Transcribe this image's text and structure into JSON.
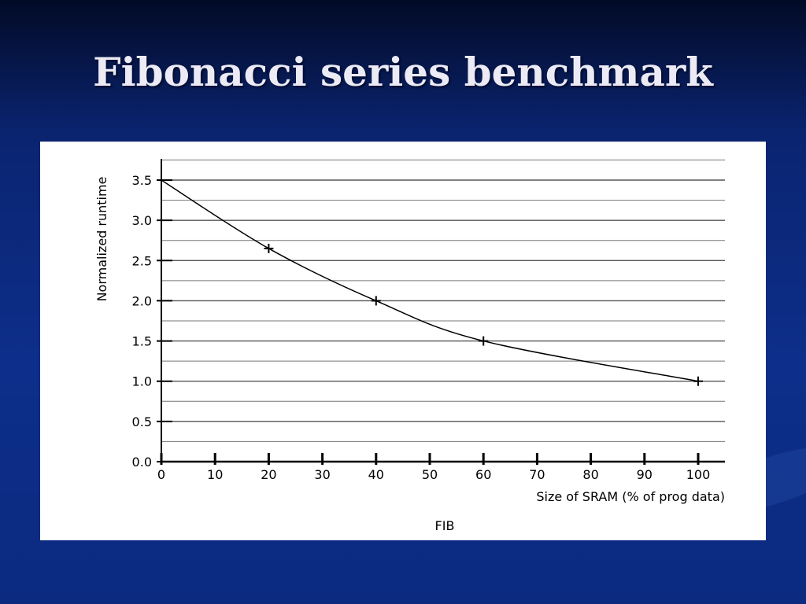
{
  "slide": {
    "title": "Fibonacci series benchmark",
    "background_color": "#0b2a80"
  },
  "chart_data": {
    "type": "line",
    "title": "",
    "caption": "FIB",
    "xlabel": "Size of SRAM (% of prog data)",
    "ylabel": "Normalized runtime",
    "xlim": [
      0,
      100
    ],
    "ylim": [
      0,
      3.75
    ],
    "x_ticks": [
      0,
      10,
      20,
      30,
      40,
      50,
      60,
      70,
      80,
      90,
      100
    ],
    "y_ticks": [
      0.0,
      0.5,
      1.0,
      1.5,
      2.0,
      2.5,
      3.0,
      3.5
    ],
    "y_tick_labels": [
      "0.0",
      "0.5",
      "1.0",
      "1.5",
      "2.0",
      "2.5",
      "3.0",
      "3.5"
    ],
    "grid": "horizontal",
    "series": [
      {
        "x": [
          0,
          20,
          40,
          60,
          100
        ],
        "values": [
          3.5,
          2.65,
          2.0,
          1.5,
          1.0
        ],
        "marker": "plus",
        "line": "smooth",
        "color": "#000000"
      }
    ]
  }
}
